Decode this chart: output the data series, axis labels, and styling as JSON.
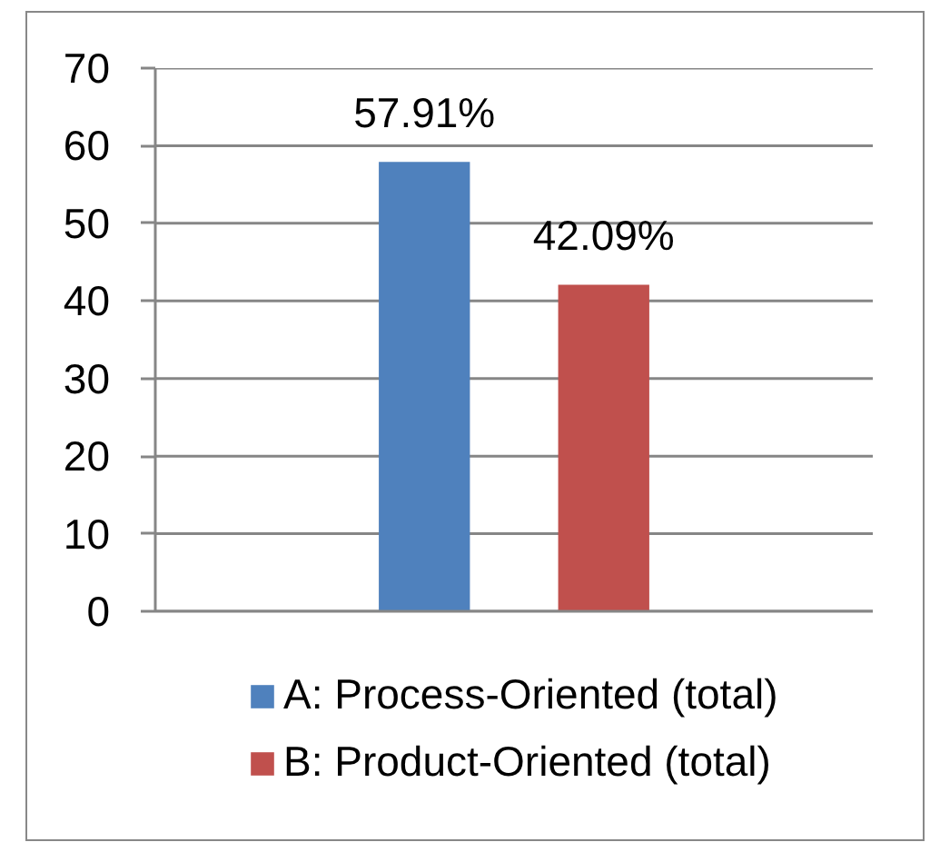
{
  "chart_data": {
    "type": "bar",
    "categories": [
      null
    ],
    "series": [
      {
        "name": "A: Process-Oriented (total)",
        "color": "#4f81bd",
        "values": [
          57.91
        ],
        "value_labels": [
          "57.91%"
        ]
      },
      {
        "name": "B: Product-Oriented (total)",
        "color": "#c0504d",
        "values": [
          42.09
        ],
        "value_labels": [
          "42.09%"
        ]
      }
    ],
    "ylim": [
      0,
      70
    ],
    "yticks": [
      0,
      10,
      20,
      30,
      40,
      50,
      60,
      70
    ],
    "grid": "y",
    "legend": "bottom",
    "tick_labels": "y"
  }
}
